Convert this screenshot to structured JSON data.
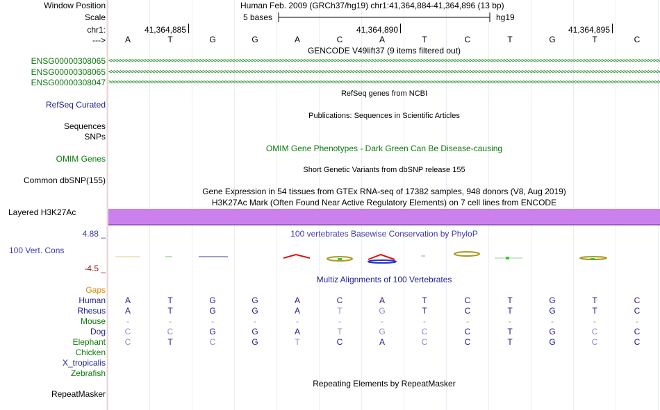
{
  "header": {
    "window_position_label": "Window Position",
    "position_text": "Human Feb. 2009 (GRCh37/hg19)   chr1:41,364,884-41,364,896 (13 bp)",
    "scale_label": "Scale",
    "scale_text": "5 bases",
    "assembly": "hg19",
    "chrom_label": "chr1:",
    "strand_label": "--->",
    "coord_ticks": [
      "41,364,885",
      "41,364,890",
      "41,364,895"
    ]
  },
  "sequence": [
    "A",
    "T",
    "G",
    "G",
    "A",
    "C",
    "A",
    "T",
    "C",
    "T",
    "G",
    "T",
    "C"
  ],
  "tracks": {
    "gencode_title": "GENCODE V49lift37 (9 items filtered out)",
    "genes": [
      {
        "name": "ENSG00000308065",
        "strand": "minus"
      },
      {
        "name": "ENSG00000308065",
        "strand": "minus"
      },
      {
        "name": "ENSG00000308047",
        "strand": "plus"
      }
    ],
    "refseq_title": "RefSeq genes from NCBI",
    "refseq_label": "RefSeq Curated",
    "publications_title": "Publications: Sequences in Scientific Articles",
    "sequences_label": "Sequences",
    "snps_label": "SNPs",
    "omim_title": "OMIM Gene Phenotypes - Dark Green Can Be Disease-causing",
    "omim_label": "OMIM Genes",
    "dbsnp_title": "Short Genetic Variants from dbSNP release 155",
    "dbsnp_label": "Common dbSNP(155)",
    "gtex_title": "Gene Expression in 54 tissues from GTEx RNA-seq of 17382 samples, 948 donors (V8, Aug 2019)",
    "h3k27_title": "H3K27Ac Mark (Often Found Near Active Regulatory Elements) on 7 cell lines from ENCODE",
    "h3k27_label": "Layered H3K27Ac",
    "cons_title": "100 vertebrates Basewise Conservation by PhyloP",
    "cons_label": "100 Vert. Cons",
    "cons_max": "4.88 _",
    "cons_min": "-4.5 _",
    "multiz_title": "Multiz Alignments of 100 Vertebrates",
    "gaps_label": "Gaps",
    "repeat_title": "Repeating Elements by RepeatMasker",
    "repeat_label": "RepeatMasker"
  },
  "alignments": [
    {
      "species": "Human",
      "bases": [
        "A",
        "T",
        "G",
        "G",
        "A",
        "C",
        "A",
        "T",
        "C",
        "T",
        "G",
        "T",
        "C"
      ]
    },
    {
      "species": "Rhesus",
      "bases": [
        "A",
        "T",
        "G",
        "G",
        "A",
        "T",
        "G",
        "T",
        "C",
        "T",
        "G",
        "T",
        "C"
      ]
    },
    {
      "species": "Mouse",
      "bases": [
        "-",
        "-",
        "-",
        "-",
        "-",
        "-",
        "-",
        "-",
        "-",
        "-",
        "-",
        "-",
        "-"
      ]
    },
    {
      "species": "Dog",
      "bases": [
        "C",
        "C",
        "G",
        "G",
        "A",
        "T",
        "G",
        "C",
        "C",
        "T",
        "G",
        "C",
        "C"
      ]
    },
    {
      "species": "Elephant",
      "bases": [
        "C",
        "T",
        "C",
        "G",
        "T",
        "C",
        "A",
        "C",
        "C",
        "T",
        "G",
        "C",
        "C"
      ]
    },
    {
      "species": "Chicken",
      "bases": []
    },
    {
      "species": "X_tropicalis",
      "bases": []
    },
    {
      "species": "Zebrafish",
      "bases": []
    }
  ],
  "colors": {
    "label_blue": "#1c1c8c",
    "label_green": "#0b7a0b",
    "gaps_orange": "#d98c00",
    "h3k27_fill": "#cc80ee",
    "cons_blue": "#3a3ab0",
    "cons_red": "#8b1a1a"
  }
}
